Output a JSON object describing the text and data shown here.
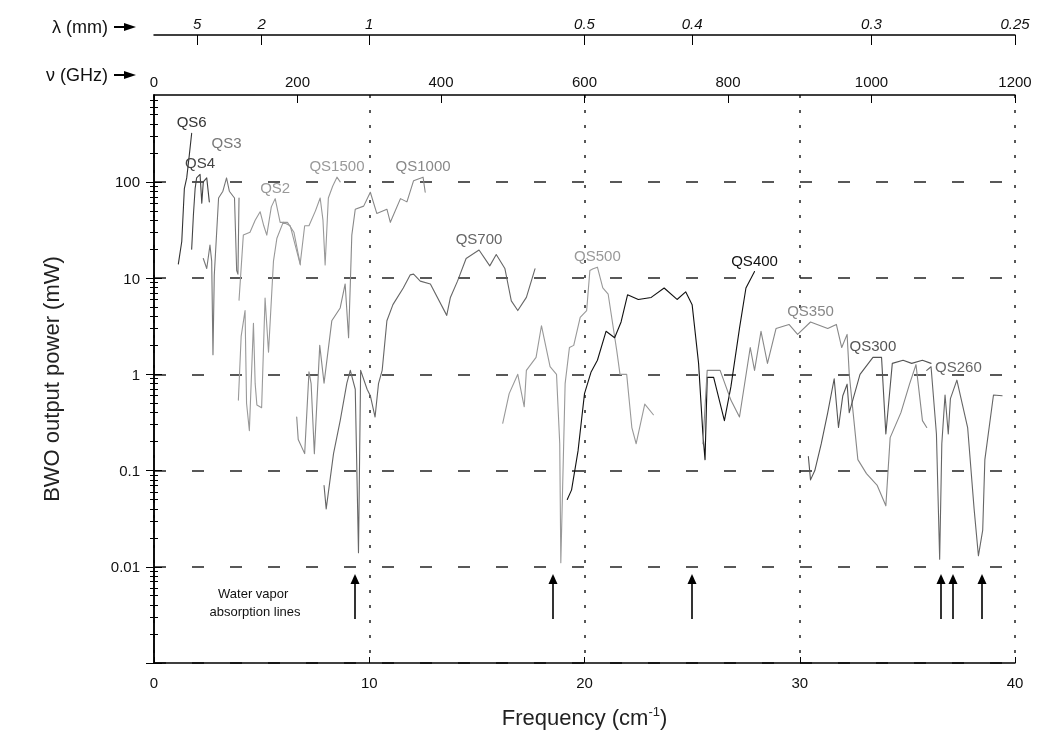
{
  "chart_data": {
    "type": "line",
    "xlabel": "Frequency (cm$^{-1}$)",
    "ylabel": "BWO output power (mW)",
    "x2label": "ν (GHz)",
    "xlim": [
      0,
      40
    ],
    "xticks": [
      0,
      10,
      20,
      30,
      40
    ],
    "x2lim": [
      0,
      1200
    ],
    "x2ticks": [
      0,
      200,
      400,
      600,
      800,
      1000,
      1200
    ],
    "ylim": [
      0.001,
      800
    ],
    "yticks": [
      {
        "value": 0.001,
        "label": null
      },
      0.01,
      0.1,
      1,
      10,
      100
    ],
    "log": true,
    "grid": true,
    "annotations": [
      "Water vapor absorption lines",
      "λ (mm)",
      "5",
      "2",
      "1",
      "0.5",
      "0.4",
      "0.3",
      "0.25"
    ],
    "series": [
      {
        "name": "QS6",
        "color": "#333333",
        "x": [
          1.13,
          1.29,
          1.41,
          1.52,
          1.64,
          1.75
        ],
        "values": [
          14,
          24,
          85,
          110,
          190,
          320
        ]
      },
      {
        "name": "QS4",
        "color": "#444444",
        "x": [
          1.75,
          1.83,
          1.91,
          1.98,
          2.14,
          2.22,
          2.29,
          2.45,
          2.57
        ],
        "values": [
          20,
          45,
          85,
          110,
          120,
          60,
          100,
          110,
          62
        ]
      },
      {
        "name": "QS3",
        "color": "#777777",
        "x": [
          2.29,
          2.45,
          2.6,
          2.68,
          2.74,
          2.8,
          3.0,
          3.2,
          3.37,
          3.5,
          3.74,
          3.84,
          3.9,
          3.95
        ],
        "values": [
          16,
          12.6,
          22,
          15,
          1.6,
          10.7,
          68,
          80,
          110,
          80,
          68,
          12,
          11,
          68
        ]
      },
      {
        "name": "QS2",
        "color": "#999999",
        "x": [
          3.95,
          4.15,
          4.46,
          4.7,
          4.93,
          5.1,
          5.24,
          5.45,
          5.63,
          5.86,
          6.2,
          6.5,
          6.8
        ],
        "values": [
          5.9,
          28,
          30,
          40,
          49,
          35,
          28,
          55,
          67,
          38,
          38,
          30,
          13.7
        ]
      },
      {
        "name": "QS1500",
        "color": "#999999",
        "x": [
          3.92,
          4.05,
          4.23,
          4.3,
          4.43,
          4.62,
          4.7,
          4.78,
          5.0,
          5.16,
          5.32,
          5.55,
          5.71,
          6.0,
          6.33,
          6.56,
          6.79,
          7.0,
          7.2,
          7.5,
          7.72,
          7.85,
          7.95,
          8.1,
          8.3,
          8.5,
          8.65
        ],
        "values": [
          0.54,
          2.5,
          4.6,
          0.5,
          0.26,
          3.4,
          0.8,
          0.48,
          0.45,
          6.2,
          1.7,
          15,
          26,
          38,
          35,
          22,
          14,
          35,
          35,
          50,
          68,
          40,
          13.7,
          68,
          90,
          112,
          100
        ]
      },
      {
        "name": "QS1000",
        "color": "#888888",
        "x": [
          6.63,
          6.7,
          7.0,
          7.2,
          7.3,
          7.45,
          7.7,
          7.9,
          8.26,
          8.65,
          8.88,
          9.04,
          9.12,
          9.19,
          9.35,
          9.74,
          10.05,
          10.35,
          10.82,
          10.98,
          11.45,
          11.75,
          12.06,
          12.5,
          12.6
        ],
        "values": [
          0.36,
          0.21,
          0.15,
          1.06,
          0.8,
          0.15,
          2.0,
          0.81,
          3.6,
          4.9,
          8.7,
          2.4,
          8.7,
          28,
          52,
          56,
          78,
          47,
          52,
          38,
          67,
          62,
          103,
          112,
          78
        ]
      },
      {
        "name": "QS700",
        "color": "#666666",
        "x": [
          7.9,
          8.0,
          8.34,
          8.65,
          8.96,
          9.12,
          9.35,
          9.5,
          9.6,
          9.9,
          10.05,
          10.27,
          10.43,
          10.6,
          10.82,
          11.1,
          11.58,
          11.9,
          12.06,
          12.37,
          12.84,
          13.6,
          13.77,
          14.1,
          14.5,
          15.1,
          15.6,
          15.9,
          16.3,
          16.6,
          16.9,
          17.3,
          17.7
        ],
        "values": [
          0.07,
          0.04,
          0.15,
          0.33,
          0.81,
          1.1,
          0.7,
          0.014,
          1.1,
          0.7,
          0.6,
          0.36,
          0.8,
          1.1,
          3.6,
          5.3,
          7.9,
          10.8,
          11,
          9.3,
          8.7,
          4.1,
          6.3,
          9.3,
          16,
          19.6,
          13.4,
          17.6,
          12.6,
          5.8,
          4.6,
          6.3,
          12.5
        ]
      },
      {
        "name": "QS500",
        "color": "#999999",
        "x": [
          16.2,
          16.5,
          16.9,
          17.2,
          17.3,
          17.75,
          18.0,
          18.4,
          18.7,
          18.85,
          18.9,
          19.1,
          19.3,
          19.5,
          19.8,
          20.1,
          20.25,
          20.4,
          20.6,
          20.85,
          21.1,
          21.5,
          21.65,
          21.96,
          22.2,
          22.4,
          22.8,
          23.2
        ],
        "values": [
          0.31,
          0.63,
          1.0,
          0.46,
          1.1,
          1.5,
          3.2,
          1.2,
          1.0,
          0.19,
          0.011,
          0.8,
          1.9,
          2.0,
          3.9,
          4.6,
          12,
          12.5,
          13,
          7.9,
          6.8,
          1.75,
          1.0,
          1.0,
          0.28,
          0.19,
          0.49,
          0.38
        ]
      },
      {
        "name": "QS400",
        "color": "#111111",
        "x": [
          19.2,
          19.4,
          19.7,
          20.0,
          20.3,
          20.6,
          21.0,
          21.4,
          21.7,
          22.0,
          22.5,
          23.1,
          23.7,
          24.3,
          24.7,
          25.0,
          25.3,
          25.5,
          25.6,
          25.7,
          26.0,
          26.5,
          26.8,
          27.2,
          27.5,
          27.9
        ],
        "values": [
          0.05,
          0.063,
          0.16,
          0.63,
          1.05,
          1.4,
          2.8,
          2.4,
          3.5,
          6.7,
          6.0,
          6.3,
          7.9,
          6.0,
          7.2,
          5.3,
          1.3,
          0.24,
          0.13,
          0.93,
          0.93,
          0.33,
          0.74,
          3.0,
          7.9,
          11.7
        ]
      },
      {
        "name": "QS350",
        "color": "#888888",
        "x": [
          25.5,
          25.7,
          26.3,
          26.8,
          27.2,
          27.7,
          27.9,
          28.2,
          28.5,
          28.9,
          29.5,
          29.9,
          30.5,
          31.3,
          31.7,
          31.95,
          32.2,
          32.3,
          32.7,
          33.1,
          33.6,
          34.0,
          34.2,
          34.7,
          35.1,
          35.4,
          35.7,
          35.9
        ],
        "values": [
          0.19,
          1.1,
          1.1,
          0.54,
          0.36,
          1.9,
          1.1,
          2.8,
          1.3,
          3.0,
          3.3,
          2.6,
          3.5,
          3.0,
          3.3,
          1.9,
          2.6,
          1.0,
          0.13,
          0.093,
          0.07,
          0.043,
          0.22,
          0.4,
          0.79,
          1.26,
          0.33,
          0.28
        ]
      },
      {
        "name": "QS300",
        "color": "#555555",
        "x": [
          30.4,
          30.5,
          30.7,
          31.0,
          31.3,
          31.6,
          31.8,
          32.0,
          32.2,
          32.3,
          32.8,
          33.4,
          33.8,
          34.0,
          34.3,
          34.8,
          35.2,
          35.7,
          36.1
        ],
        "values": [
          0.14,
          0.08,
          0.1,
          0.19,
          0.4,
          0.9,
          0.28,
          0.6,
          0.79,
          0.4,
          1.0,
          1.5,
          1.5,
          0.24,
          1.3,
          1.4,
          1.3,
          1.4,
          1.3
        ]
      },
      {
        "name": "QS260",
        "color": "#666666",
        "x": [
          35.9,
          36.1,
          36.35,
          36.5,
          36.6,
          36.75,
          36.9,
          37.0,
          37.3,
          37.8,
          38.1,
          38.3,
          38.5,
          38.6,
          39.0,
          39.4
        ],
        "values": [
          1.1,
          1.2,
          0.24,
          0.012,
          0.19,
          0.61,
          0.24,
          0.56,
          0.87,
          0.28,
          0.04,
          0.013,
          0.024,
          0.13,
          0.61,
          0.6
        ]
      }
    ]
  }
}
